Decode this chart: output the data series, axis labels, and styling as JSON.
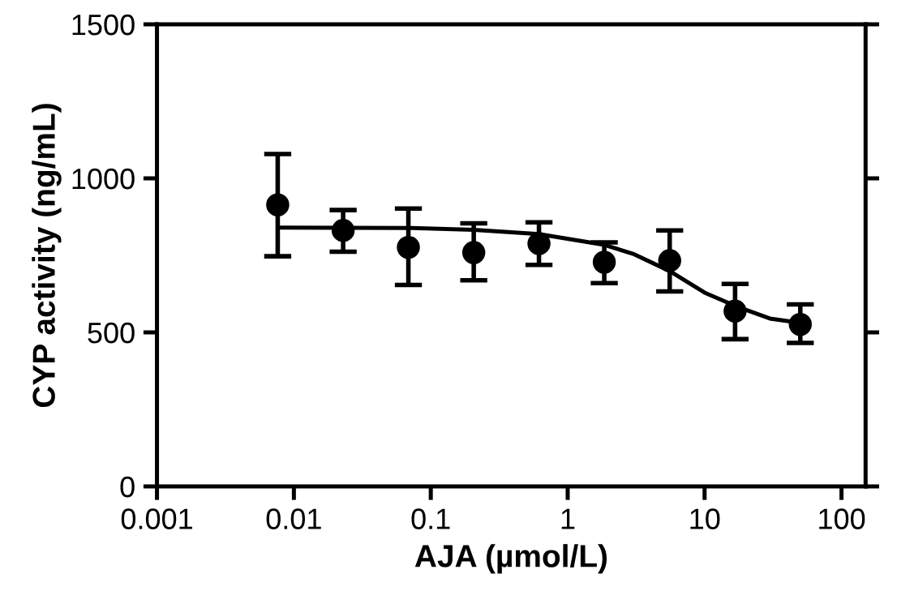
{
  "chart_data": {
    "type": "scatter",
    "xlabel": "AJA (µmol/L)",
    "ylabel": "CYP activity (ng/mL)",
    "log": "x",
    "xlim": [
      0.001,
      150
    ],
    "xticks": [
      0.001,
      0.01,
      0.1,
      1,
      10,
      100
    ],
    "ylim": [
      0,
      1500
    ],
    "yticks": [
      0,
      500,
      1000,
      1500
    ],
    "grid": false,
    "legend": false,
    "series": [
      {
        "marker": "circle",
        "color": "#000000",
        "x": [
          0.00762,
          0.0229,
          0.0686,
          0.206,
          0.617,
          1.85,
          5.56,
          16.7,
          50
        ],
        "values": [
          914,
          831,
          776,
          759,
          788,
          728,
          733,
          569,
          526
        ],
        "errors": [
          [
            747,
            1079
          ],
          [
            762,
            897
          ],
          [
            654,
            902
          ],
          [
            669,
            854
          ],
          [
            719,
            857
          ],
          [
            660,
            792
          ],
          [
            633,
            831
          ],
          [
            478,
            657
          ],
          [
            466,
            591
          ]
        ]
      },
      {
        "type": "line",
        "color": "#000000",
        "line_style": "solid",
        "x": [
          0.00762,
          0.0686,
          0.206,
          0.617,
          1.85,
          3,
          5.56,
          10,
          16.7,
          30,
          50
        ],
        "values": [
          840,
          839,
          833,
          819,
          784,
          755,
          699,
          629,
          586,
          545,
          531
        ]
      }
    ]
  }
}
